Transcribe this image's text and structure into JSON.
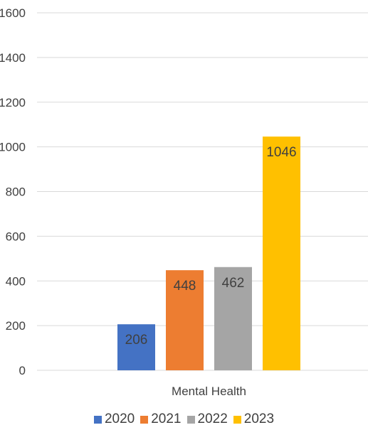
{
  "chart_data": {
    "type": "bar",
    "categories": [
      "Mental Health"
    ],
    "series": [
      {
        "name": "2020",
        "values": [
          206
        ],
        "color": "#4472C4"
      },
      {
        "name": "2021",
        "values": [
          448
        ],
        "color": "#ED7D31"
      },
      {
        "name": "2022",
        "values": [
          462
        ],
        "color": "#A5A5A5"
      },
      {
        "name": "2023",
        "values": [
          1046
        ],
        "color": "#FFC000"
      }
    ],
    "y_tick_labels": [
      "0",
      "200",
      "400",
      "600",
      "800",
      "1000",
      "1200",
      "1400",
      "1600"
    ],
    "ylim": [
      0,
      1600
    ],
    "grid": true,
    "legend": "bottom",
    "data_labels": true
  }
}
